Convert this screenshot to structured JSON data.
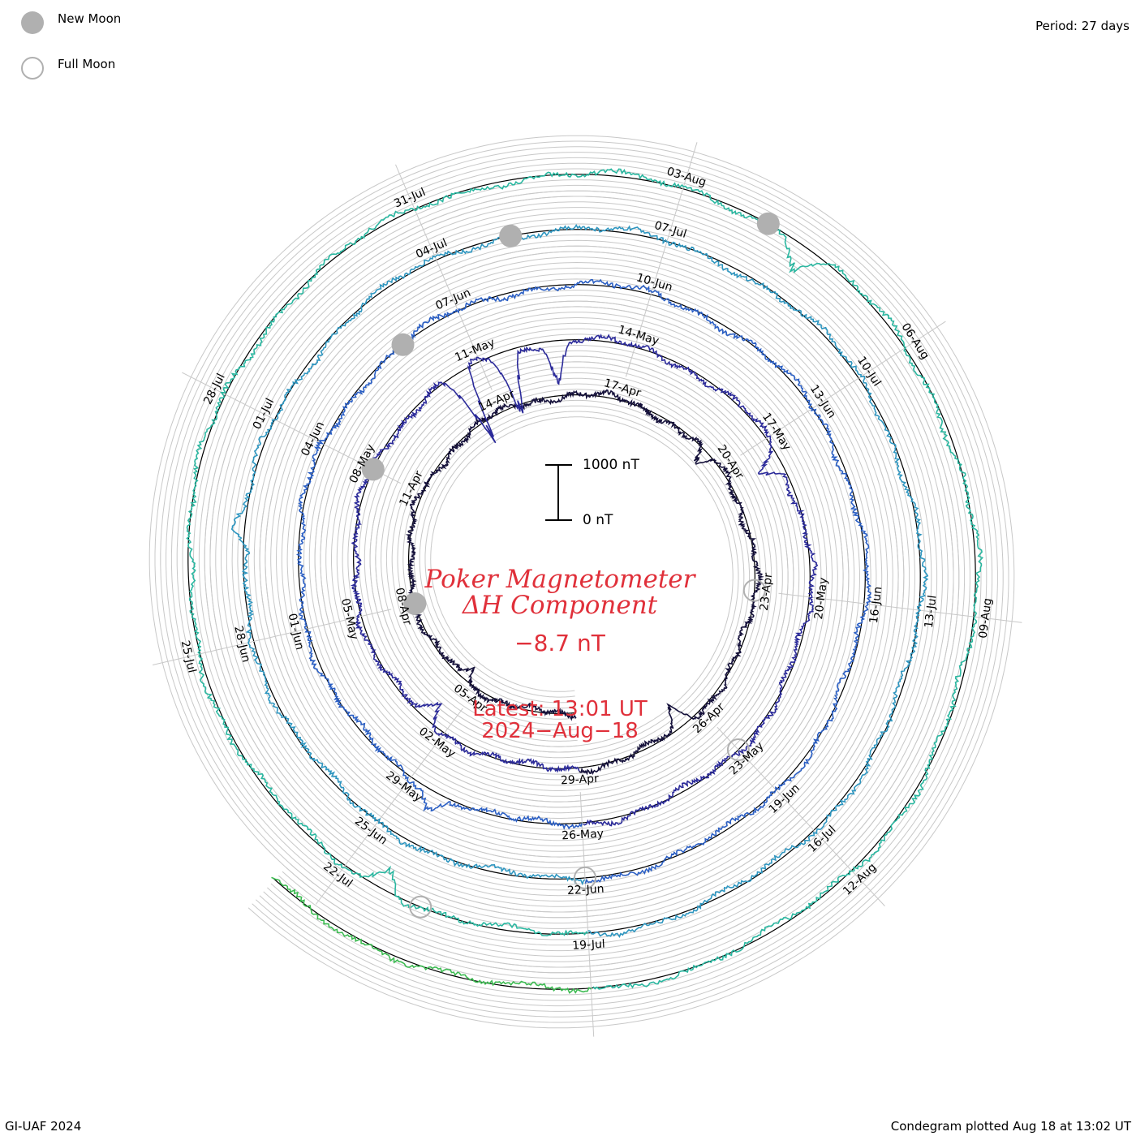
{
  "legend": {
    "new_moon_label": "New Moon",
    "full_moon_label": "Full Moon"
  },
  "period_label": "Period: 27 days",
  "footer_left": "GI-UAF 2024",
  "footer_right": "Condegram plotted Aug 18 at 13:02 UT",
  "colors": {
    "title": "#e0303a",
    "grid": "#c8c8c8",
    "moon": "#b0b0b0",
    "reference_ring": "#000000"
  },
  "chart_data": {
    "type": "condegram",
    "title_line1": "Poker Magnetometer",
    "title_line2": "ΔH Component",
    "current_value": "−8.7 nT",
    "latest_line1": "Latest: 13:01 UT",
    "latest_line2": "2024−Aug−18",
    "scale_top_label": "1000 nT",
    "scale_bottom_label": "0 nT",
    "scale_nT": 1000,
    "period_days": 27,
    "start_date": "2024-04-02",
    "end_date": "2024-08-18",
    "ring_colors": [
      "#14103a",
      "#2b2a9a",
      "#2b5fc4",
      "#2e96c0",
      "#2ab7a0",
      "#3dbb52",
      "#b9c21e",
      "#c08a18",
      "#b25012"
    ],
    "date_labels": [
      {
        "date": "2024-04-05",
        "text": "05-Apr"
      },
      {
        "date": "2024-04-08",
        "text": "08-Apr"
      },
      {
        "date": "2024-04-11",
        "text": "11-Apr"
      },
      {
        "date": "2024-04-14",
        "text": "14-Apr"
      },
      {
        "date": "2024-04-17",
        "text": "17-Apr"
      },
      {
        "date": "2024-04-20",
        "text": "20-Apr"
      },
      {
        "date": "2024-04-23",
        "text": "23-Apr"
      },
      {
        "date": "2024-04-26",
        "text": "26-Apr"
      },
      {
        "date": "2024-04-29",
        "text": "29-Apr"
      },
      {
        "date": "2024-05-02",
        "text": "02-May"
      },
      {
        "date": "2024-05-05",
        "text": "05-May"
      },
      {
        "date": "2024-05-08",
        "text": "08-May"
      },
      {
        "date": "2024-05-11",
        "text": "11-May"
      },
      {
        "date": "2024-05-14",
        "text": "14-May"
      },
      {
        "date": "2024-05-17",
        "text": "17-May"
      },
      {
        "date": "2024-05-20",
        "text": "20-May"
      },
      {
        "date": "2024-05-23",
        "text": "23-May"
      },
      {
        "date": "2024-05-26",
        "text": "26-May"
      },
      {
        "date": "2024-05-29",
        "text": "29-May"
      },
      {
        "date": "2024-06-01",
        "text": "01-Jun"
      },
      {
        "date": "2024-06-04",
        "text": "04-Jun"
      },
      {
        "date": "2024-06-07",
        "text": "07-Jun"
      },
      {
        "date": "2024-06-10",
        "text": "10-Jun"
      },
      {
        "date": "2024-06-13",
        "text": "13-Jun"
      },
      {
        "date": "2024-06-16",
        "text": "16-Jun"
      },
      {
        "date": "2024-06-19",
        "text": "19-Jun"
      },
      {
        "date": "2024-06-22",
        "text": "22-Jun"
      },
      {
        "date": "2024-06-25",
        "text": "25-Jun"
      },
      {
        "date": "2024-06-28",
        "text": "28-Jun"
      },
      {
        "date": "2024-07-01",
        "text": "01-Jul"
      },
      {
        "date": "2024-07-04",
        "text": "04-Jul"
      },
      {
        "date": "2024-07-07",
        "text": "07-Jul"
      },
      {
        "date": "2024-07-10",
        "text": "10-Jul"
      },
      {
        "date": "2024-07-13",
        "text": "13-Jul"
      },
      {
        "date": "2024-07-16",
        "text": "16-Jul"
      },
      {
        "date": "2024-07-19",
        "text": "19-Jul"
      },
      {
        "date": "2024-07-22",
        "text": "22-Jul"
      },
      {
        "date": "2024-07-25",
        "text": "25-Jul"
      },
      {
        "date": "2024-07-28",
        "text": "28-Jul"
      },
      {
        "date": "2024-07-31",
        "text": "31-Jul"
      },
      {
        "date": "2024-08-03",
        "text": "03-Aug"
      },
      {
        "date": "2024-08-06",
        "text": "06-Aug"
      },
      {
        "date": "2024-08-09",
        "text": "09-Aug"
      },
      {
        "date": "2024-08-12",
        "text": "12-Aug"
      }
    ],
    "new_moons": [
      "2024-04-08",
      "2024-05-08",
      "2024-06-06",
      "2024-07-05",
      "2024-08-04"
    ],
    "full_moons": [
      "2024-04-23",
      "2024-05-23",
      "2024-06-22",
      "2024-07-21"
    ],
    "disturbances": [
      {
        "date": "2024-04-05",
        "amplitude_nT": -300
      },
      {
        "date": "2024-04-19",
        "amplitude_nT": -350
      },
      {
        "date": "2024-04-26",
        "amplitude_nT": -400
      },
      {
        "date": "2024-05-02",
        "amplitude_nT": -350
      },
      {
        "date": "2024-05-10",
        "amplitude_nT": -1500
      },
      {
        "date": "2024-05-11",
        "amplitude_nT": -1300
      },
      {
        "date": "2024-05-12",
        "amplitude_nT": -800
      },
      {
        "date": "2024-05-17",
        "amplitude_nT": -450
      },
      {
        "date": "2024-05-28",
        "amplitude_nT": 350
      },
      {
        "date": "2024-06-29",
        "amplitude_nT": 300
      },
      {
        "date": "2024-07-21",
        "amplitude_nT": -450
      },
      {
        "date": "2024-08-04",
        "amplitude_nT": -450
      }
    ]
  }
}
